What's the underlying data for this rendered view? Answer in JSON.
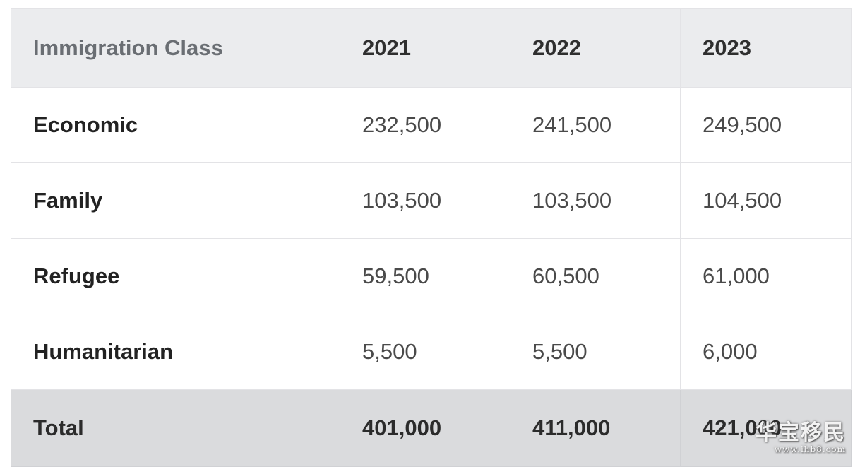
{
  "table": {
    "headers": [
      "Immigration Class",
      "2021",
      "2022",
      "2023"
    ],
    "rows": [
      {
        "label": "Economic",
        "values": [
          "232,500",
          "241,500",
          "249,500"
        ]
      },
      {
        "label": "Family",
        "values": [
          "103,500",
          "103,500",
          "104,500"
        ]
      },
      {
        "label": "Refugee",
        "values": [
          "59,500",
          "60,500",
          "61,000"
        ]
      },
      {
        "label": "Humanitarian",
        "values": [
          "5,500",
          "5,500",
          "6,000"
        ]
      }
    ],
    "total": {
      "label": "Total",
      "values": [
        "401,000",
        "411,000",
        "421,000"
      ]
    }
  },
  "watermark": {
    "main": "华宝移民",
    "sub": "www.ihb8.com"
  }
}
